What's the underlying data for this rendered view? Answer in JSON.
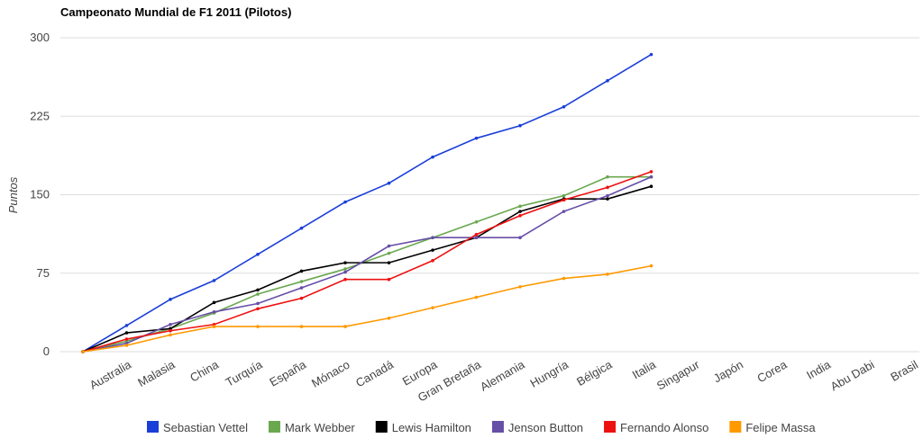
{
  "chart_data": {
    "type": "line",
    "title": "Campeonato Mundial de F1 2011 (Pilotos)",
    "y_label": "Puntos",
    "categories": [
      null,
      "Australia",
      "Malasia",
      "China",
      "Turquía",
      "España",
      "Mónaco",
      "Canadá",
      "Europa",
      "Gran Bretaña",
      "Alemania",
      "Hungría",
      "Bélgica",
      "Italia",
      "Singapur",
      "Japón",
      "Corea",
      "India",
      "Abu Dabi",
      "Brasil"
    ],
    "ylim": [
      0,
      300
    ],
    "yticks": [
      0,
      75,
      150,
      225,
      300
    ],
    "grid": true,
    "legend": "bottom",
    "series": [
      {
        "name": "Sebastian Vettel",
        "color": "#1a3fd9",
        "values": [
          0,
          25,
          50,
          68,
          93,
          118,
          143,
          161,
          186,
          204,
          216,
          234,
          259,
          284,
          null,
          null,
          null,
          null,
          null,
          null
        ]
      },
      {
        "name": "Mark Webber",
        "color": "#6aa84f",
        "values": [
          0,
          10,
          22,
          37,
          55,
          67,
          79,
          94,
          109,
          124,
          139,
          149,
          167,
          167,
          null,
          null,
          null,
          null,
          null,
          null
        ]
      },
      {
        "name": "Lewis Hamilton",
        "color": "#000000",
        "values": [
          0,
          18,
          22,
          47,
          59,
          77,
          85,
          85,
          97,
          109,
          134,
          146,
          146,
          158,
          null,
          null,
          null,
          null,
          null,
          null
        ]
      },
      {
        "name": "Jenson Button",
        "color": "#674ea7",
        "values": [
          0,
          8,
          26,
          38,
          46,
          61,
          76,
          101,
          109,
          109,
          109,
          134,
          149,
          167,
          null,
          null,
          null,
          null,
          null,
          null
        ]
      },
      {
        "name": "Fernando Alonso",
        "color": "#ee1111",
        "values": [
          0,
          12,
          20,
          26,
          41,
          51,
          69,
          69,
          87,
          112,
          130,
          145,
          157,
          172,
          null,
          null,
          null,
          null,
          null,
          null
        ]
      },
      {
        "name": "Felipe Massa",
        "color": "#ff9900",
        "values": [
          0,
          6,
          16,
          24,
          24,
          24,
          24,
          32,
          42,
          52,
          62,
          70,
          74,
          82,
          null,
          null,
          null,
          null,
          null,
          null
        ]
      }
    ]
  }
}
